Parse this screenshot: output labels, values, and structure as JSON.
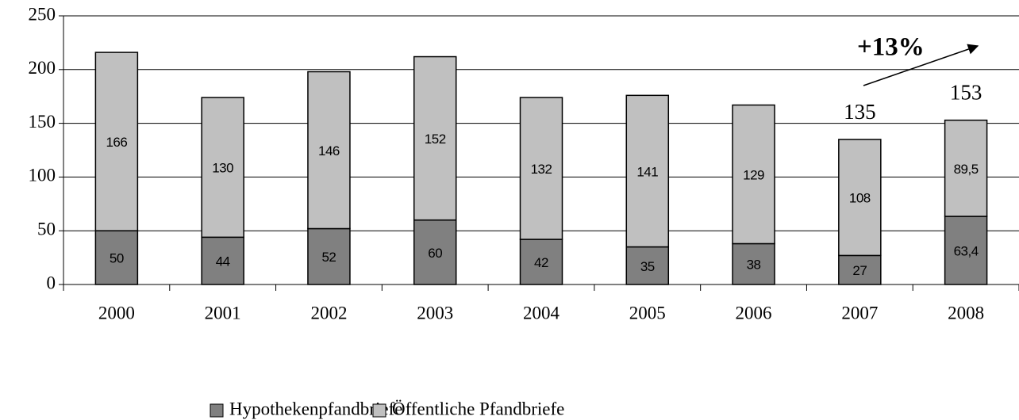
{
  "chart_data": {
    "type": "stacked_bar",
    "categories": [
      "2000",
      "2001",
      "2002",
      "2003",
      "2004",
      "2005",
      "2006",
      "2007",
      "2008"
    ],
    "series": [
      {
        "name": "Hypothekenpfandbriefe",
        "color": "#808080",
        "values": [
          50,
          44,
          52,
          60,
          42,
          35,
          38,
          27,
          63.4
        ],
        "value_labels": [
          "50",
          "44",
          "52",
          "60",
          "42",
          "35",
          "38",
          "27",
          "63,4"
        ]
      },
      {
        "name": "Öffentliche Pfandbriefe",
        "color": "#c0c0c0",
        "values": [
          166,
          130,
          146,
          152,
          132,
          141,
          129,
          108,
          89.5
        ],
        "value_labels": [
          "166",
          "130",
          "146",
          "152",
          "132",
          "141",
          "129",
          "108",
          "89,5"
        ]
      }
    ],
    "ylim": [
      0,
      250
    ],
    "yticks": [
      0,
      50,
      100,
      150,
      200,
      250
    ],
    "grid": true,
    "legend": "bottom",
    "total_labels": [
      {
        "category": "2007",
        "value": 135
      },
      {
        "category": "2008",
        "value": 153
      }
    ],
    "annotations": [
      {
        "text": "+13%"
      }
    ]
  }
}
